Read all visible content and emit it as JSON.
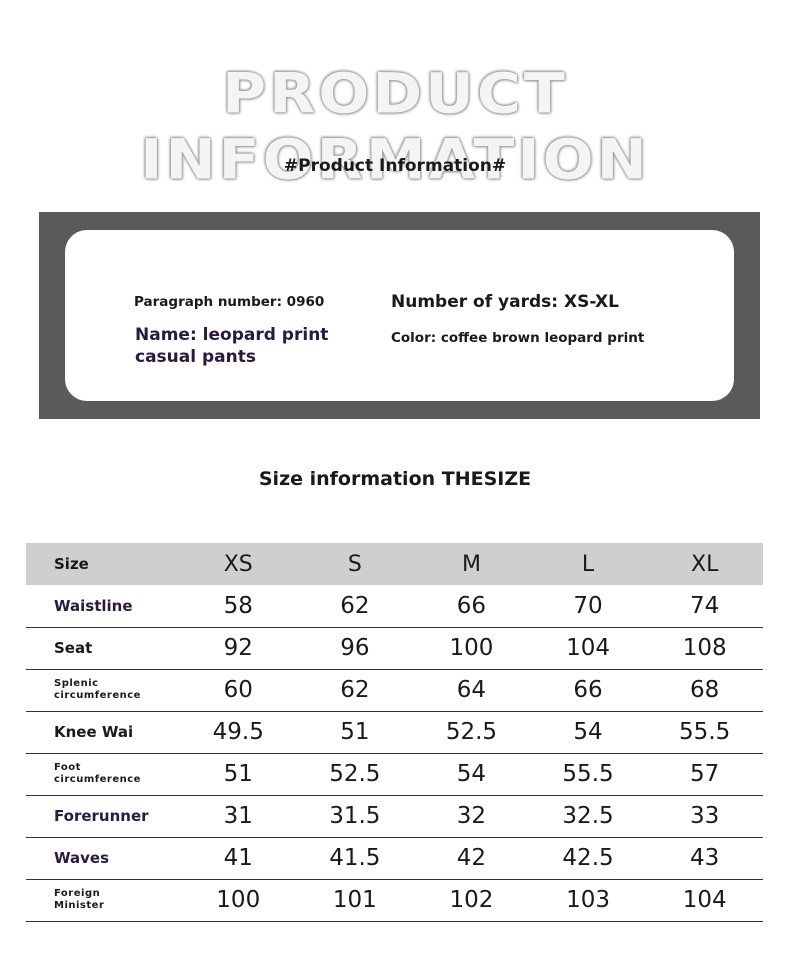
{
  "banner": "PRODUCT INFORMATION",
  "product_heading": "#Product Information#",
  "product": {
    "paragraph_number": "Paragraph number: 0960",
    "number_of_yards": "Number of yards: XS-XL",
    "name": "Name: leopard print casual pants",
    "color": "Color: coffee brown leopard print"
  },
  "size_heading": "Size information THESIZE",
  "table": {
    "header_label": "Size",
    "columns": [
      "XS",
      "S",
      "M",
      "L",
      "XL"
    ],
    "rows": [
      {
        "label": "Waistline",
        "values": [
          "58",
          "62",
          "66",
          "70",
          "74"
        ]
      },
      {
        "label": "Seat",
        "values": [
          "92",
          "96",
          "100",
          "104",
          "108"
        ]
      },
      {
        "label": "Splenic\ncircumference",
        "values": [
          "60",
          "62",
          "64",
          "66",
          "68"
        ]
      },
      {
        "label": "Knee Wai",
        "values": [
          "49.5",
          "51",
          "52.5",
          "54",
          "55.5"
        ]
      },
      {
        "label": "Foot\ncircumference",
        "values": [
          "51",
          "52.5",
          "54",
          "55.5",
          "57"
        ]
      },
      {
        "label": "Forerunner",
        "values": [
          "31",
          "31.5",
          "32",
          "32.5",
          "33"
        ]
      },
      {
        "label": "Waves",
        "values": [
          "41",
          "41.5",
          "42",
          "42.5",
          "43"
        ]
      },
      {
        "label": "Foreign\nMinister",
        "values": [
          "100",
          "101",
          "102",
          "103",
          "104"
        ]
      }
    ]
  }
}
